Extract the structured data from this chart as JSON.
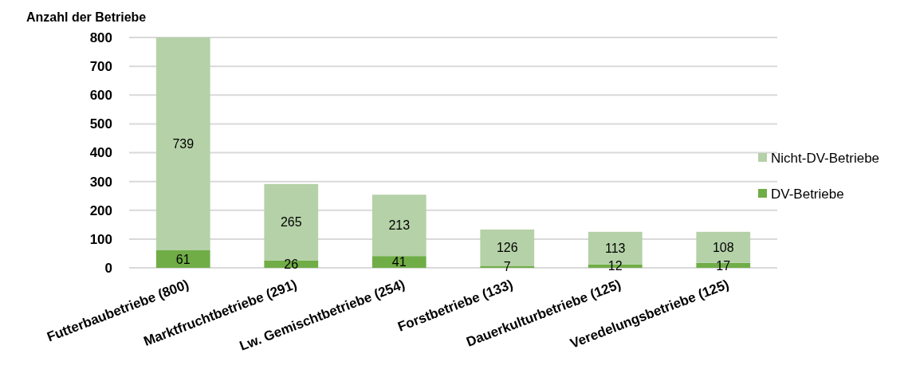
{
  "chart_data": {
    "type": "bar",
    "stacked": true,
    "ylabel": "Anzahl der Betriebe",
    "categories": [
      "Futterbaubetriebe (800)",
      "Marktfruchtbetriebe (291)",
      "Lw. Gemischtbetriebe (254)",
      "Forstbetriebe (133)",
      "Dauerkulturbetriebe (125)",
      "Veredelungsbetriebe (125)"
    ],
    "series": [
      {
        "name": "DV-Betriebe",
        "color": "#70ad47",
        "values": [
          61,
          26,
          41,
          7,
          12,
          17
        ]
      },
      {
        "name": "Nicht-DV-Betriebe",
        "color": "#b5d1a8",
        "values": [
          739,
          265,
          213,
          126,
          113,
          108
        ]
      }
    ],
    "ylim": [
      0,
      800
    ],
    "yticks": [
      0,
      100,
      200,
      300,
      400,
      500,
      600,
      700,
      800
    ],
    "grid": "y",
    "legend": "right",
    "data_labels": true
  }
}
